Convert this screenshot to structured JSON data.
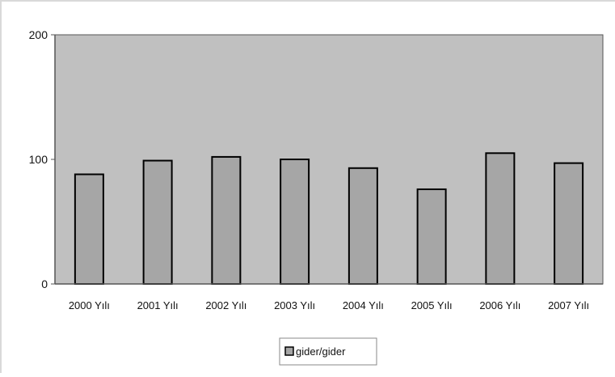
{
  "chart_data": {
    "type": "bar",
    "categories": [
      "2000 Yılı",
      "2001 Yılı",
      "2002 Yılı",
      "2003 Yılı",
      "2004 Yılı",
      "2005 Yılı",
      "2006 Yılı",
      "2007 Yılı"
    ],
    "series": [
      {
        "name": "gider/gider",
        "values": [
          88,
          99,
          102,
          100,
          93,
          76,
          105,
          97
        ]
      }
    ],
    "y_ticks": [
      "0",
      "100",
      "200"
    ],
    "ylim": [
      0,
      200
    ],
    "grid": false,
    "legend_position": "bottom",
    "colors": {
      "plot_background": "#c0c0c0",
      "bar_fill": "#a6a6a6",
      "bar_stroke": "#000000",
      "axis": "#555555"
    }
  }
}
